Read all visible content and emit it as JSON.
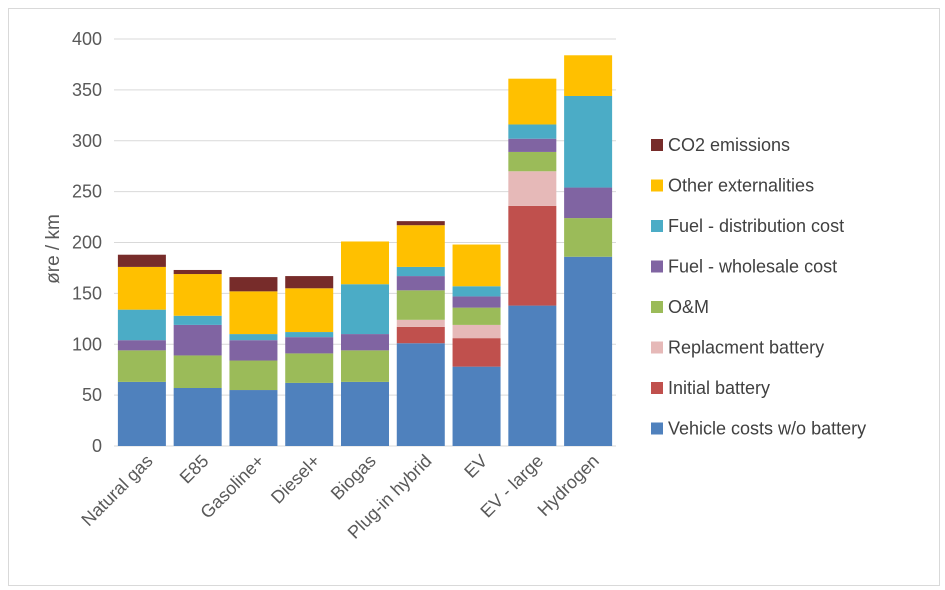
{
  "chart_data": {
    "type": "bar",
    "stacked": true,
    "ylabel": "øre / km",
    "xlabel": "",
    "ylim": [
      0,
      400
    ],
    "yticks": [
      0,
      50,
      100,
      150,
      200,
      250,
      300,
      350,
      400
    ],
    "grid": true,
    "legend_position": "right",
    "categories": [
      "Natural gas",
      "E85",
      "Gasoline+",
      "Diesel+",
      "Biogas",
      "Plug-in hybrid",
      "EV",
      "EV - large",
      "Hydrogen"
    ],
    "series": [
      {
        "name": "Vehicle costs w/o battery",
        "color": "#4f81bd",
        "values": [
          63,
          57,
          55,
          62,
          63,
          101,
          78,
          138,
          186
        ]
      },
      {
        "name": "Initial battery",
        "color": "#c0504d",
        "values": [
          0,
          0,
          0,
          0,
          0,
          16,
          28,
          98,
          0
        ]
      },
      {
        "name": "Replacment battery",
        "color": "#e6b9b8",
        "values": [
          0,
          0,
          0,
          0,
          0,
          7,
          13,
          34,
          0
        ]
      },
      {
        "name": "O&M",
        "color": "#9bbb59",
        "values": [
          31,
          32,
          29,
          29,
          31,
          29,
          17,
          19,
          38
        ]
      },
      {
        "name": "Fuel - wholesale cost",
        "color": "#8064a2",
        "values": [
          10,
          30,
          20,
          16,
          16,
          14,
          11,
          13,
          30
        ]
      },
      {
        "name": "Fuel - distribution cost",
        "color": "#4bacc6",
        "values": [
          30,
          9,
          6,
          5,
          49,
          9,
          10,
          14,
          90
        ]
      },
      {
        "name": "Other externalities",
        "color": "#ffc000",
        "values": [
          42,
          41,
          42,
          43,
          42,
          41,
          41,
          45,
          40
        ]
      },
      {
        "name": "CO2 emissions",
        "color": "#772c2a",
        "values": [
          12,
          4,
          14,
          12,
          0,
          4,
          0,
          0,
          0
        ]
      }
    ]
  }
}
